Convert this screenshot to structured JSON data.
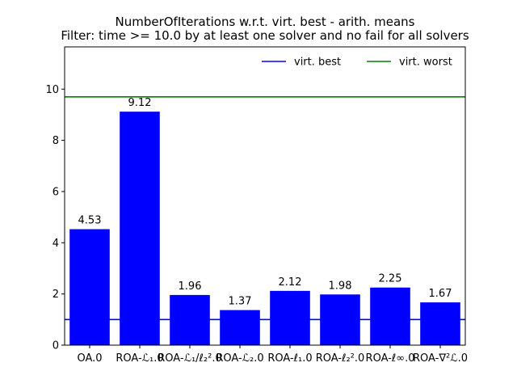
{
  "chart_data": {
    "type": "bar",
    "title": "NumberOfIterations w.r.t. virt. best - arith. means",
    "subtitle": "Filter: time >= 10.0 by at least one solver and no fail for all solvers",
    "xlabel": "",
    "ylabel": "",
    "categories": [
      "OA.0",
      "ROA-ℒ₁.0",
      "ROA-ℒ₁/ℓ₂².0",
      "ROA-ℒ₂.0",
      "ROA-ℓ₁.0",
      "ROA-ℓ₂².0",
      "ROA-ℓ∞.0",
      "ROA-∇²ℒ.0"
    ],
    "values": [
      4.53,
      9.12,
      1.96,
      1.37,
      2.12,
      1.98,
      2.25,
      1.67
    ],
    "value_labels": [
      "4.53",
      "9.12",
      "1.96",
      "1.37",
      "2.12",
      "1.98",
      "2.25",
      "1.67"
    ],
    "bar_color": "#0000ff",
    "ylim": [
      0,
      11.65
    ],
    "yticks": [
      0,
      2,
      4,
      6,
      8,
      10
    ],
    "ytick_labels": [
      "0",
      "2",
      "4",
      "6",
      "8",
      "10"
    ],
    "reference_lines": [
      {
        "name": "virt. best",
        "value": 1.0,
        "color": "#0000ff"
      },
      {
        "name": "virt. worst",
        "value": 9.7,
        "color": "#008000"
      }
    ],
    "legend_position": "top-right",
    "grid": false
  }
}
